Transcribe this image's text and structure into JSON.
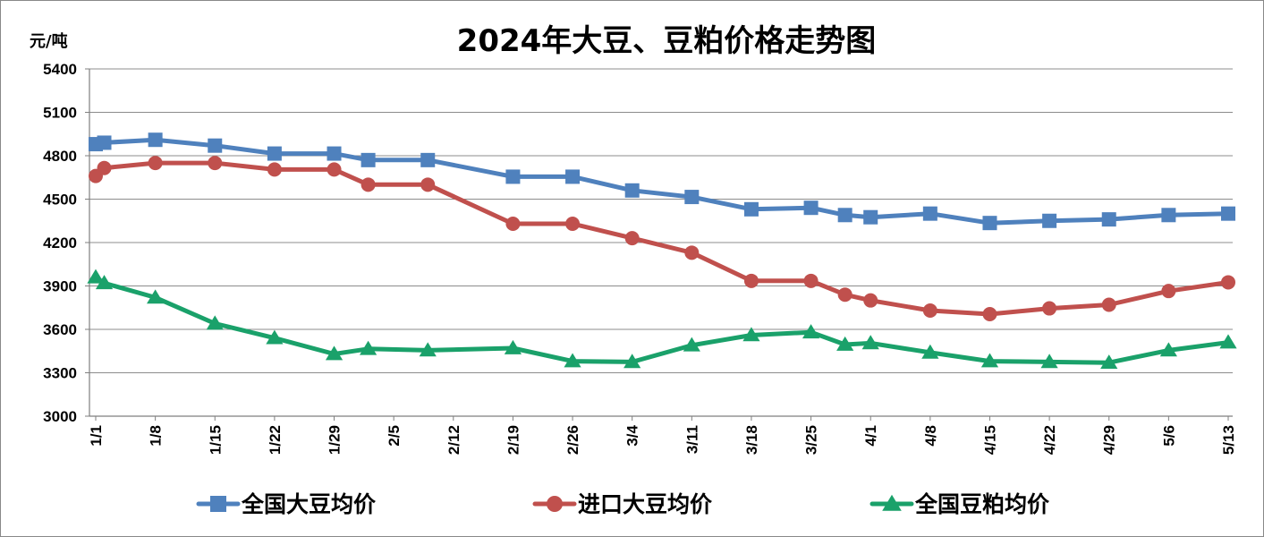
{
  "chart_data": {
    "type": "line",
    "title": "2024年大豆、豆粕价格走势图",
    "ylabel": "元/吨",
    "xlabel": "",
    "ylim": [
      3000,
      5400
    ],
    "yticks": [
      3000,
      3300,
      3600,
      3900,
      4200,
      4500,
      4800,
      5100,
      5400
    ],
    "xlim": [
      "2024-01-01",
      "2024-05-13"
    ],
    "xticks": [
      "1/1",
      "1/8",
      "1/15",
      "1/22",
      "1/29",
      "2/5",
      "2/12",
      "2/19",
      "2/26",
      "3/4",
      "3/11",
      "3/18",
      "3/25",
      "4/1",
      "4/8",
      "4/15",
      "4/22",
      "4/29",
      "5/6",
      "5/13"
    ],
    "grid": "horizontal",
    "legend_position": "bottom",
    "series": [
      {
        "name": "全国大豆均价",
        "color": "#4F81BD",
        "marker": "square",
        "points": [
          {
            "x": "2024-01-01",
            "y": 4880
          },
          {
            "x": "2024-01-02",
            "y": 4890
          },
          {
            "x": "2024-01-08",
            "y": 4910
          },
          {
            "x": "2024-01-15",
            "y": 4870
          },
          {
            "x": "2024-01-22",
            "y": 4815
          },
          {
            "x": "2024-01-29",
            "y": 4815
          },
          {
            "x": "2024-02-02",
            "y": 4770
          },
          {
            "x": "2024-02-09",
            "y": 4770
          },
          {
            "x": "2024-02-19",
            "y": 4655
          },
          {
            "x": "2024-02-26",
            "y": 4655
          },
          {
            "x": "2024-03-04",
            "y": 4560
          },
          {
            "x": "2024-03-11",
            "y": 4515
          },
          {
            "x": "2024-03-18",
            "y": 4430
          },
          {
            "x": "2024-03-25",
            "y": 4440
          },
          {
            "x": "2024-03-29",
            "y": 4390
          },
          {
            "x": "2024-04-01",
            "y": 4375
          },
          {
            "x": "2024-04-08",
            "y": 4400
          },
          {
            "x": "2024-04-15",
            "y": 4335
          },
          {
            "x": "2024-04-22",
            "y": 4350
          },
          {
            "x": "2024-04-29",
            "y": 4360
          },
          {
            "x": "2024-05-06",
            "y": 4390
          },
          {
            "x": "2024-05-13",
            "y": 4400
          }
        ]
      },
      {
        "name": "进口大豆均价",
        "color": "#C0504D",
        "marker": "circle",
        "points": [
          {
            "x": "2024-01-01",
            "y": 4660
          },
          {
            "x": "2024-01-02",
            "y": 4715
          },
          {
            "x": "2024-01-08",
            "y": 4750
          },
          {
            "x": "2024-01-15",
            "y": 4750
          },
          {
            "x": "2024-01-22",
            "y": 4705
          },
          {
            "x": "2024-01-29",
            "y": 4705
          },
          {
            "x": "2024-02-02",
            "y": 4600
          },
          {
            "x": "2024-02-09",
            "y": 4600
          },
          {
            "x": "2024-02-19",
            "y": 4330
          },
          {
            "x": "2024-02-26",
            "y": 4330
          },
          {
            "x": "2024-03-04",
            "y": 4230
          },
          {
            "x": "2024-03-11",
            "y": 4130
          },
          {
            "x": "2024-03-18",
            "y": 3935
          },
          {
            "x": "2024-03-25",
            "y": 3935
          },
          {
            "x": "2024-03-29",
            "y": 3840
          },
          {
            "x": "2024-04-01",
            "y": 3800
          },
          {
            "x": "2024-04-08",
            "y": 3730
          },
          {
            "x": "2024-04-15",
            "y": 3705
          },
          {
            "x": "2024-04-22",
            "y": 3745
          },
          {
            "x": "2024-04-29",
            "y": 3770
          },
          {
            "x": "2024-05-06",
            "y": 3865
          },
          {
            "x": "2024-05-13",
            "y": 3925
          }
        ]
      },
      {
        "name": "全国豆粕均价",
        "color": "#1AA16A",
        "marker": "triangle",
        "points": [
          {
            "x": "2024-01-01",
            "y": 3960
          },
          {
            "x": "2024-01-02",
            "y": 3920
          },
          {
            "x": "2024-01-08",
            "y": 3820
          },
          {
            "x": "2024-01-15",
            "y": 3640
          },
          {
            "x": "2024-01-22",
            "y": 3540
          },
          {
            "x": "2024-01-29",
            "y": 3430
          },
          {
            "x": "2024-02-02",
            "y": 3465
          },
          {
            "x": "2024-02-09",
            "y": 3455
          },
          {
            "x": "2024-02-19",
            "y": 3470
          },
          {
            "x": "2024-02-26",
            "y": 3380
          },
          {
            "x": "2024-03-04",
            "y": 3375
          },
          {
            "x": "2024-03-11",
            "y": 3490
          },
          {
            "x": "2024-03-18",
            "y": 3560
          },
          {
            "x": "2024-03-25",
            "y": 3580
          },
          {
            "x": "2024-03-29",
            "y": 3495
          },
          {
            "x": "2024-04-01",
            "y": 3505
          },
          {
            "x": "2024-04-08",
            "y": 3440
          },
          {
            "x": "2024-04-15",
            "y": 3380
          },
          {
            "x": "2024-04-22",
            "y": 3375
          },
          {
            "x": "2024-04-29",
            "y": 3370
          },
          {
            "x": "2024-05-06",
            "y": 3455
          },
          {
            "x": "2024-05-13",
            "y": 3510
          }
        ]
      }
    ]
  }
}
